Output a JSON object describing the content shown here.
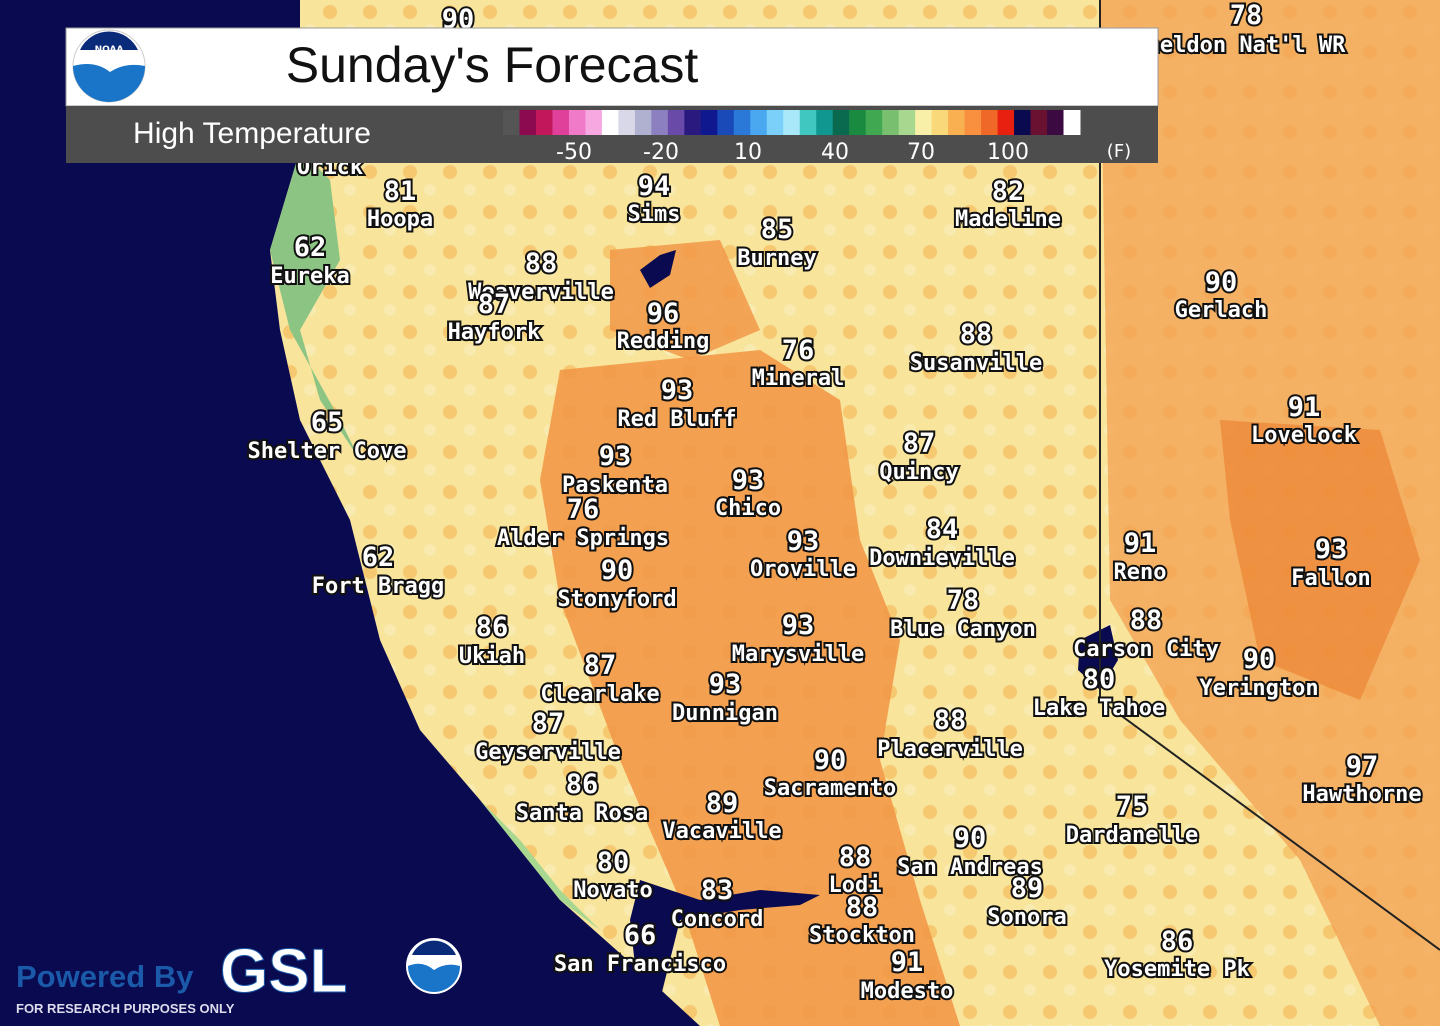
{
  "header": {
    "title": "Sunday's Forecast",
    "subtitle": "High Temperature",
    "logo": "NOAA"
  },
  "legend": {
    "ticks": [
      "-50",
      "-20",
      "10",
      "40",
      "70",
      "100"
    ],
    "unit": "(F)",
    "colors": [
      "#555555",
      "#8b0a50",
      "#c2185b",
      "#e0409a",
      "#f07ac8",
      "#f8a8e0",
      "#ffffff",
      "#d8d8e8",
      "#b0b0d0",
      "#8c80c0",
      "#6a4aa8",
      "#2a1a80",
      "#101890",
      "#1a4ab8",
      "#2a78d8",
      "#4aa8f0",
      "#7ad0f8",
      "#a8e8f8",
      "#40c8c0",
      "#109890",
      "#0a6a50",
      "#1a8a40",
      "#40a850",
      "#78c070",
      "#a8d890",
      "#f8f0a8",
      "#f8d878",
      "#f8b050",
      "#f89040",
      "#f06828",
      "#e82010",
      "#0a0a50",
      "#6a1030",
      "#3a0a40",
      "#ffffff"
    ]
  },
  "cities": [
    {
      "temp": "90",
      "name": ""
    },
    {
      "temp": "78",
      "name": "heldon Nat'l WR"
    },
    {
      "temp": "",
      "name": "Orick"
    },
    {
      "temp": "81",
      "name": "Hoopa"
    },
    {
      "temp": "62",
      "name": "Eureka"
    },
    {
      "temp": "94",
      "name": "Sims"
    },
    {
      "temp": "85",
      "name": "Burney"
    },
    {
      "temp": "82",
      "name": "Madeline"
    },
    {
      "temp": "88",
      "name": "Weaverville"
    },
    {
      "temp": "87",
      "name": "Hayfork"
    },
    {
      "temp": "96",
      "name": "Redding"
    },
    {
      "temp": "90",
      "name": "Gerlach"
    },
    {
      "temp": "76",
      "name": "Mineral"
    },
    {
      "temp": "88",
      "name": "Susanville"
    },
    {
      "temp": "93",
      "name": "Red Bluff"
    },
    {
      "temp": "65",
      "name": "Shelter Cove"
    },
    {
      "temp": "91",
      "name": "Lovelock"
    },
    {
      "temp": "87",
      "name": "Quincy"
    },
    {
      "temp": "93",
      "name": "Paskenta"
    },
    {
      "temp": "93",
      "name": "Chico"
    },
    {
      "temp": "76",
      "name": "Alder Springs"
    },
    {
      "temp": "84",
      "name": "Downieville"
    },
    {
      "temp": "62",
      "name": "Fort Bragg"
    },
    {
      "temp": "93",
      "name": "Oroville"
    },
    {
      "temp": "91",
      "name": "Reno"
    },
    {
      "temp": "93",
      "name": "Fallon"
    },
    {
      "temp": "90",
      "name": "Stonyford"
    },
    {
      "temp": "78",
      "name": "Blue Canyon"
    },
    {
      "temp": "88",
      "name": "Carson City"
    },
    {
      "temp": "86",
      "name": "Ukiah"
    },
    {
      "temp": "93",
      "name": "Marysville"
    },
    {
      "temp": "90",
      "name": "Yerington"
    },
    {
      "temp": "87",
      "name": "Clearlake"
    },
    {
      "temp": "93",
      "name": "Dunnigan"
    },
    {
      "temp": "80",
      "name": "Lake Tahoe"
    },
    {
      "temp": "87",
      "name": "Geyserville"
    },
    {
      "temp": "88",
      "name": "Placerville"
    },
    {
      "temp": "90",
      "name": "Sacramento"
    },
    {
      "temp": "97",
      "name": "Hawthorne"
    },
    {
      "temp": "86",
      "name": "Santa Rosa"
    },
    {
      "temp": "89",
      "name": "Vacaville"
    },
    {
      "temp": "75",
      "name": "Dardanelle"
    },
    {
      "temp": "90",
      "name": "San Andreas"
    },
    {
      "temp": "80",
      "name": "Novato"
    },
    {
      "temp": "88",
      "name": "Lodi"
    },
    {
      "temp": "89",
      "name": "Sonora"
    },
    {
      "temp": "83",
      "name": "Concord"
    },
    {
      "temp": "88",
      "name": "Stockton"
    },
    {
      "temp": "66",
      "name": "San Francisco"
    },
    {
      "temp": "86",
      "name": "Yosemite Pk"
    },
    {
      "temp": "91",
      "name": "Modesto"
    }
  ],
  "footer": {
    "powered": "Powered By",
    "brand": "GSL",
    "note": "FOR RESEARCH PURPOSES ONLY"
  }
}
